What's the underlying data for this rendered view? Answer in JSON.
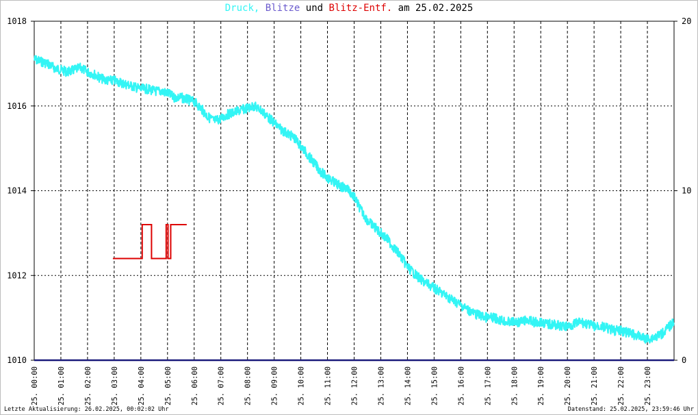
{
  "title": {
    "part1": "Druck,",
    "part2": "Blitze",
    "part3": "und",
    "part4": "Blitz-Entf.",
    "part5": "am 25.02.2025"
  },
  "colors": {
    "pressure": "#33f5f5",
    "blitze": "#6a5acd",
    "distance": "#dd0000",
    "baseline": "#1a1a7a",
    "grid": "#000000"
  },
  "footer": {
    "left": "Letzte Aktualisierung: 26.02.2025, 00:02:02 Uhr",
    "right": "Datenstand: 25.02.2025, 23:59:46 Uhr"
  },
  "chart_data": {
    "type": "line",
    "title": "Druck, Blitze und Blitz-Entf. am 25.02.2025",
    "x_ticks": [
      "25. 00:00",
      "25. 01:00",
      "25. 02:00",
      "25. 03:00",
      "25. 04:00",
      "25. 05:00",
      "25. 06:00",
      "25. 07:00",
      "25. 08:00",
      "25. 09:00",
      "25. 10:00",
      "25. 11:00",
      "25. 12:00",
      "25. 13:00",
      "25. 14:00",
      "25. 15:00",
      "25. 16:00",
      "25. 17:00",
      "25. 18:00",
      "25. 19:00",
      "25. 20:00",
      "25. 21:00",
      "25. 22:00",
      "25. 23:00"
    ],
    "y_left": {
      "ticks": [
        "1018",
        "1016",
        "1014",
        "1012",
        "1010"
      ],
      "range": [
        1010,
        1018
      ]
    },
    "y_right": {
      "ticks": [
        "20",
        "10",
        "0"
      ],
      "range": [
        0,
        20
      ]
    },
    "grid": true,
    "series": [
      {
        "name": "Druck",
        "axis": "left",
        "points": [
          [
            0.0,
            1017.1
          ],
          [
            0.25,
            1017.05
          ],
          [
            0.5,
            1017.0
          ],
          [
            0.75,
            1016.9
          ],
          [
            1.0,
            1016.85
          ],
          [
            1.25,
            1016.8
          ],
          [
            1.5,
            1016.85
          ],
          [
            1.75,
            1016.9
          ],
          [
            2.0,
            1016.8
          ],
          [
            2.25,
            1016.75
          ],
          [
            2.5,
            1016.65
          ],
          [
            2.75,
            1016.6
          ],
          [
            3.0,
            1016.6
          ],
          [
            3.25,
            1016.55
          ],
          [
            3.5,
            1016.5
          ],
          [
            3.75,
            1016.45
          ],
          [
            4.0,
            1016.4
          ],
          [
            4.25,
            1016.4
          ],
          [
            4.5,
            1016.35
          ],
          [
            4.75,
            1016.35
          ],
          [
            5.0,
            1016.3
          ],
          [
            5.25,
            1016.2
          ],
          [
            5.5,
            1016.2
          ],
          [
            5.75,
            1016.15
          ],
          [
            6.0,
            1016.1
          ],
          [
            6.25,
            1015.95
          ],
          [
            6.5,
            1015.75
          ],
          [
            6.75,
            1015.65
          ],
          [
            7.0,
            1015.7
          ],
          [
            7.25,
            1015.8
          ],
          [
            7.5,
            1015.85
          ],
          [
            7.75,
            1015.9
          ],
          [
            8.0,
            1015.95
          ],
          [
            8.25,
            1016.0
          ],
          [
            8.5,
            1015.9
          ],
          [
            8.75,
            1015.75
          ],
          [
            9.0,
            1015.6
          ],
          [
            9.25,
            1015.45
          ],
          [
            9.5,
            1015.35
          ],
          [
            9.75,
            1015.25
          ],
          [
            10.0,
            1015.05
          ],
          [
            10.25,
            1014.85
          ],
          [
            10.5,
            1014.65
          ],
          [
            10.75,
            1014.45
          ],
          [
            11.0,
            1014.3
          ],
          [
            11.25,
            1014.2
          ],
          [
            11.5,
            1014.1
          ],
          [
            11.75,
            1014.05
          ],
          [
            12.0,
            1013.85
          ],
          [
            12.25,
            1013.55
          ],
          [
            12.5,
            1013.3
          ],
          [
            12.75,
            1013.15
          ],
          [
            13.0,
            1013.0
          ],
          [
            13.25,
            1012.85
          ],
          [
            13.5,
            1012.65
          ],
          [
            13.75,
            1012.45
          ],
          [
            14.0,
            1012.2
          ],
          [
            14.25,
            1012.05
          ],
          [
            14.5,
            1011.9
          ],
          [
            14.75,
            1011.8
          ],
          [
            15.0,
            1011.7
          ],
          [
            15.25,
            1011.6
          ],
          [
            15.5,
            1011.5
          ],
          [
            15.75,
            1011.4
          ],
          [
            16.0,
            1011.3
          ],
          [
            16.25,
            1011.2
          ],
          [
            16.5,
            1011.1
          ],
          [
            16.75,
            1011.05
          ],
          [
            17.0,
            1011.0
          ],
          [
            17.25,
            1011.0
          ],
          [
            17.5,
            1010.95
          ],
          [
            17.75,
            1010.9
          ],
          [
            18.0,
            1010.9
          ],
          [
            18.25,
            1010.9
          ],
          [
            18.5,
            1010.95
          ],
          [
            18.75,
            1010.9
          ],
          [
            19.0,
            1010.9
          ],
          [
            19.25,
            1010.85
          ],
          [
            19.5,
            1010.85
          ],
          [
            19.75,
            1010.8
          ],
          [
            20.0,
            1010.8
          ],
          [
            20.25,
            1010.85
          ],
          [
            20.5,
            1010.9
          ],
          [
            20.75,
            1010.85
          ],
          [
            21.0,
            1010.8
          ],
          [
            21.25,
            1010.8
          ],
          [
            21.5,
            1010.75
          ],
          [
            21.75,
            1010.7
          ],
          [
            22.0,
            1010.7
          ],
          [
            22.25,
            1010.65
          ],
          [
            22.5,
            1010.6
          ],
          [
            22.75,
            1010.55
          ],
          [
            23.0,
            1010.5
          ],
          [
            23.25,
            1010.55
          ],
          [
            23.5,
            1010.6
          ],
          [
            23.75,
            1010.75
          ],
          [
            23.99,
            1010.9
          ]
        ]
      },
      {
        "name": "Blitz-Entf.",
        "axis": "right",
        "points": [
          [
            2.95,
            6.0
          ],
          [
            4.05,
            6.0
          ],
          [
            4.05,
            8.0
          ],
          [
            4.4,
            8.0
          ],
          [
            4.4,
            6.0
          ],
          [
            4.95,
            6.0
          ],
          [
            4.95,
            8.0
          ],
          [
            5.02,
            8.0
          ],
          [
            5.02,
            6.0
          ],
          [
            5.12,
            6.0
          ],
          [
            5.12,
            8.0
          ],
          [
            5.72,
            8.0
          ]
        ]
      }
    ]
  }
}
